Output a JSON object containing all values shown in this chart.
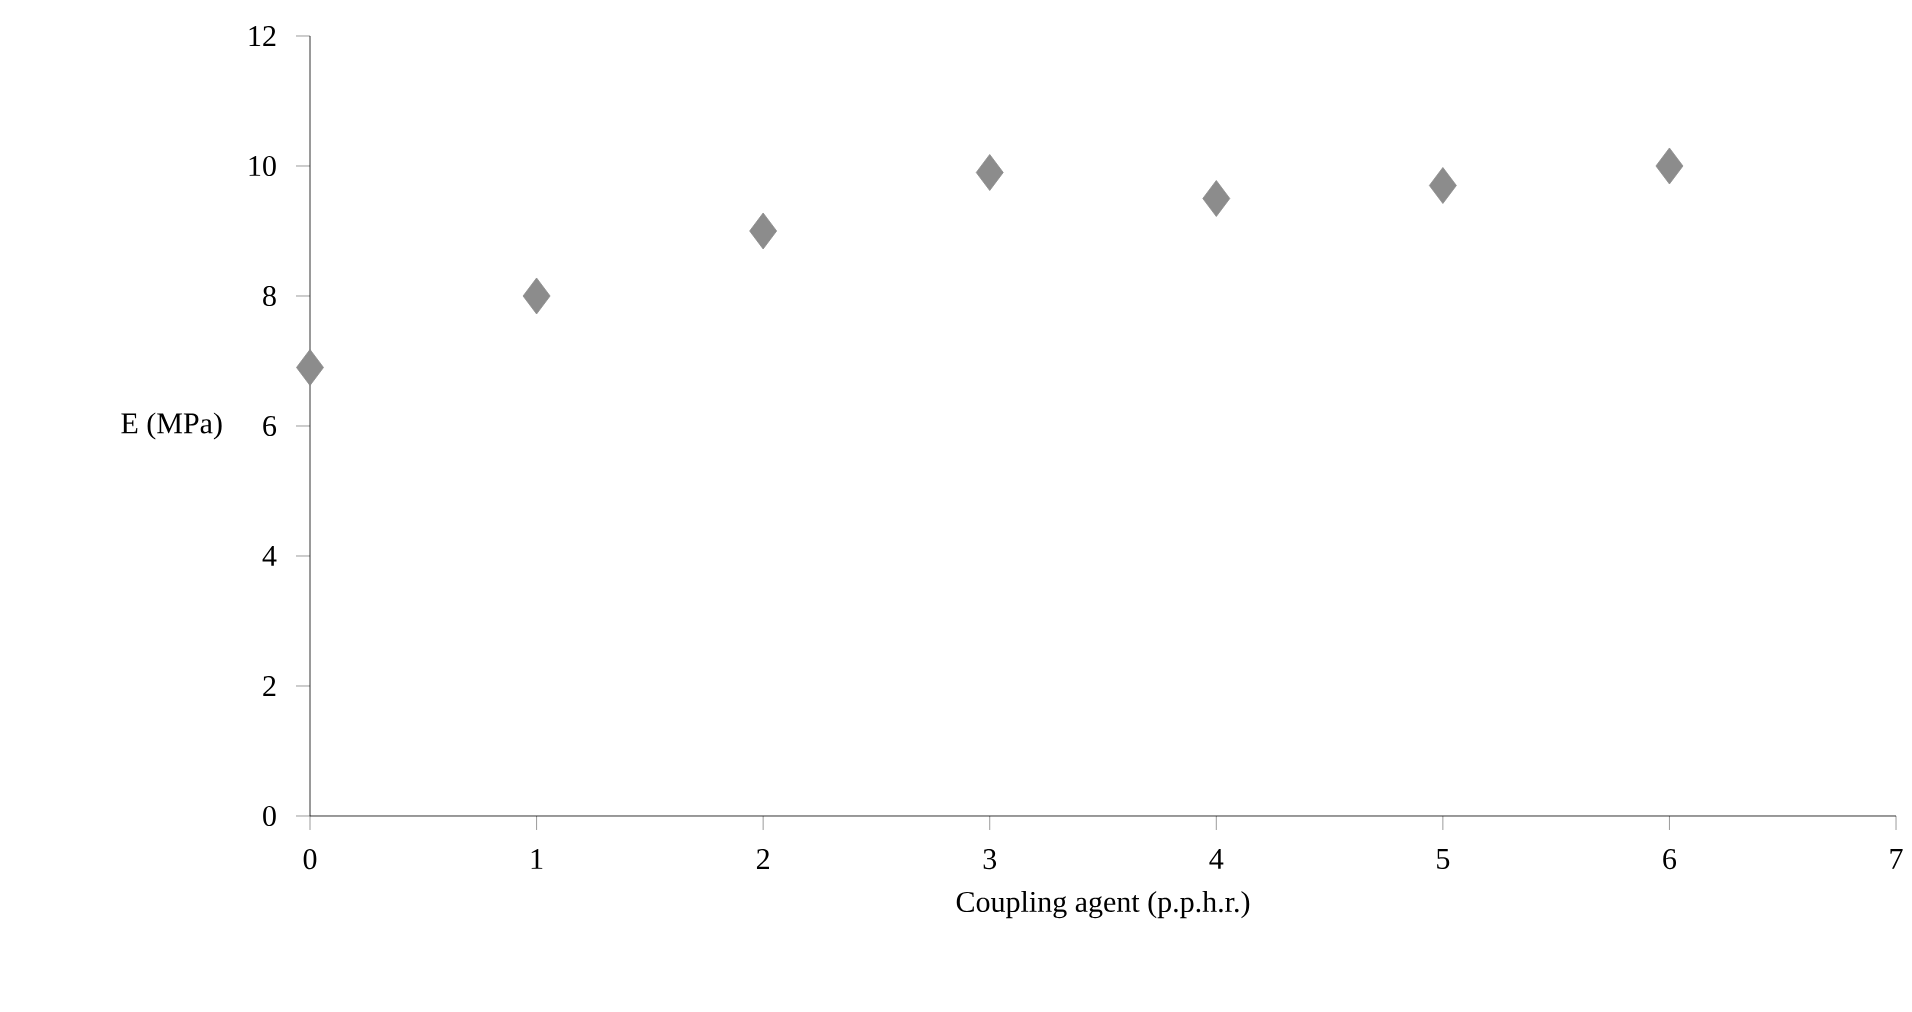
{
  "chart_data": {
    "type": "scatter",
    "xlabel": "Coupling agent (p.p.h.r.)",
    "ylabel": "E (MPa)",
    "x": [
      0,
      1,
      2,
      3,
      4,
      5,
      6
    ],
    "values": [
      6.9,
      8.0,
      9.0,
      9.9,
      9.5,
      9.7,
      10.0
    ],
    "color": "#8c8c8c",
    "marker": "diamond",
    "xlim": [
      0,
      7
    ],
    "ylim": [
      0,
      12
    ],
    "xticks": [
      0,
      1,
      2,
      3,
      4,
      5,
      6,
      7
    ],
    "yticks": [
      0,
      2,
      4,
      6,
      8,
      10,
      12
    ]
  }
}
